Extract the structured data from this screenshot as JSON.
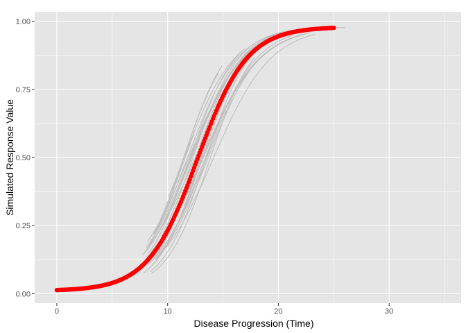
{
  "chart_data": {
    "type": "scatter",
    "title": "",
    "xlabel": "Disease Progression (Time)",
    "ylabel": "Simulated Response Value",
    "xlim": [
      -2,
      36.5
    ],
    "ylim": [
      -0.035,
      1.035
    ],
    "x_ticks": [
      0,
      10,
      20,
      30
    ],
    "x_tick_labels": [
      "0",
      "10",
      "20",
      "30"
    ],
    "y_ticks": [
      0,
      0.25,
      0.5,
      0.75,
      1.0
    ],
    "y_tick_labels": [
      "0.00",
      "0.25",
      "0.50",
      "0.75",
      "1.00"
    ],
    "grid": true,
    "legend": "none",
    "colors": {
      "panel_background": "#e5e5e5",
      "grid": "#ffffff",
      "simulated_lines": "#bebebe",
      "mean_points": "#ff0000"
    },
    "series": [
      {
        "kind": "lines",
        "count": 30,
        "model": "logistic",
        "min": 0.01,
        "max": 0.98,
        "midpoint_range": [
          11.4,
          14.2
        ],
        "rate_range": [
          0.38,
          0.52
        ],
        "x_start_range": [
          7.6,
          10.2
        ],
        "x_end_range": [
          11.4,
          26.5
        ]
      },
      {
        "kind": "points",
        "model": "logistic",
        "min": 0.01,
        "max": 0.98,
        "midpoint": 12.7,
        "rate": 0.45,
        "x_range": [
          0,
          25
        ],
        "step": 0.1
      }
    ]
  }
}
